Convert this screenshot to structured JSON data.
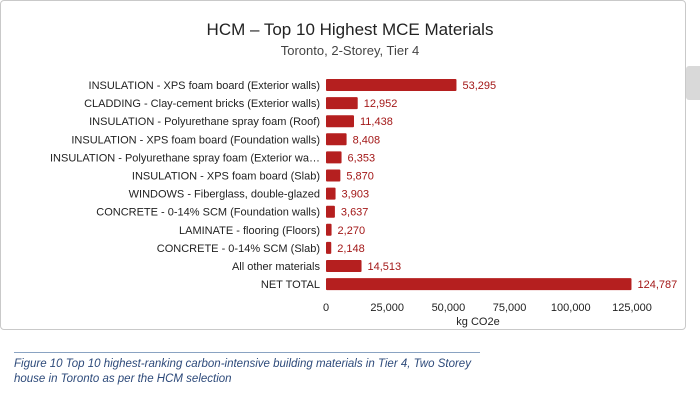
{
  "chart_data": {
    "type": "bar",
    "orientation": "horizontal",
    "title": "HCM – Top 10 Highest MCE Materials",
    "subtitle": "Toronto, 2-Storey, Tier 4",
    "xlabel": "kg CO2e",
    "ylabel": "",
    "xlim": [
      0,
      125000
    ],
    "xticks": [
      "0",
      "25,000",
      "50,000",
      "75,000",
      "100,000",
      "125,000"
    ],
    "xtick_values": [
      0,
      25000,
      50000,
      75000,
      100000,
      125000
    ],
    "grid": false,
    "bar_color": "#b51f1f",
    "label_color": "#a31818",
    "categories": [
      "INSULATION - XPS foam board (Exterior walls)",
      "CLADDING - Clay-cement bricks (Exterior walls)",
      "INSULATION - Polyurethane spray foam (Roof)",
      "INSULATION - XPS foam board (Foundation walls)",
      "INSULATION - Polyurethane spray foam (Exterior wa…",
      "INSULATION - XPS foam board (Slab)",
      "WINDOWS - Fiberglass, double-glazed",
      "CONCRETE - 0-14% SCM (Foundation walls)",
      "LAMINATE - flooring (Floors)",
      "CONCRETE - 0-14% SCM (Slab)",
      "All other materials",
      "NET TOTAL"
    ],
    "values": [
      53295,
      12952,
      11438,
      8408,
      6353,
      5870,
      3903,
      3637,
      2270,
      2148,
      14513,
      124787
    ],
    "value_labels": [
      "53,295",
      "12,952",
      "11,438",
      "8,408",
      "6,353",
      "5,870",
      "3,903",
      "3,637",
      "2,270",
      "2,148",
      "14,513",
      "124,787"
    ]
  },
  "caption": "Figure 10 Top 10 highest-ranking carbon-intensive building materials in Tier 4, Two Storey house in Toronto as per the HCM selection"
}
